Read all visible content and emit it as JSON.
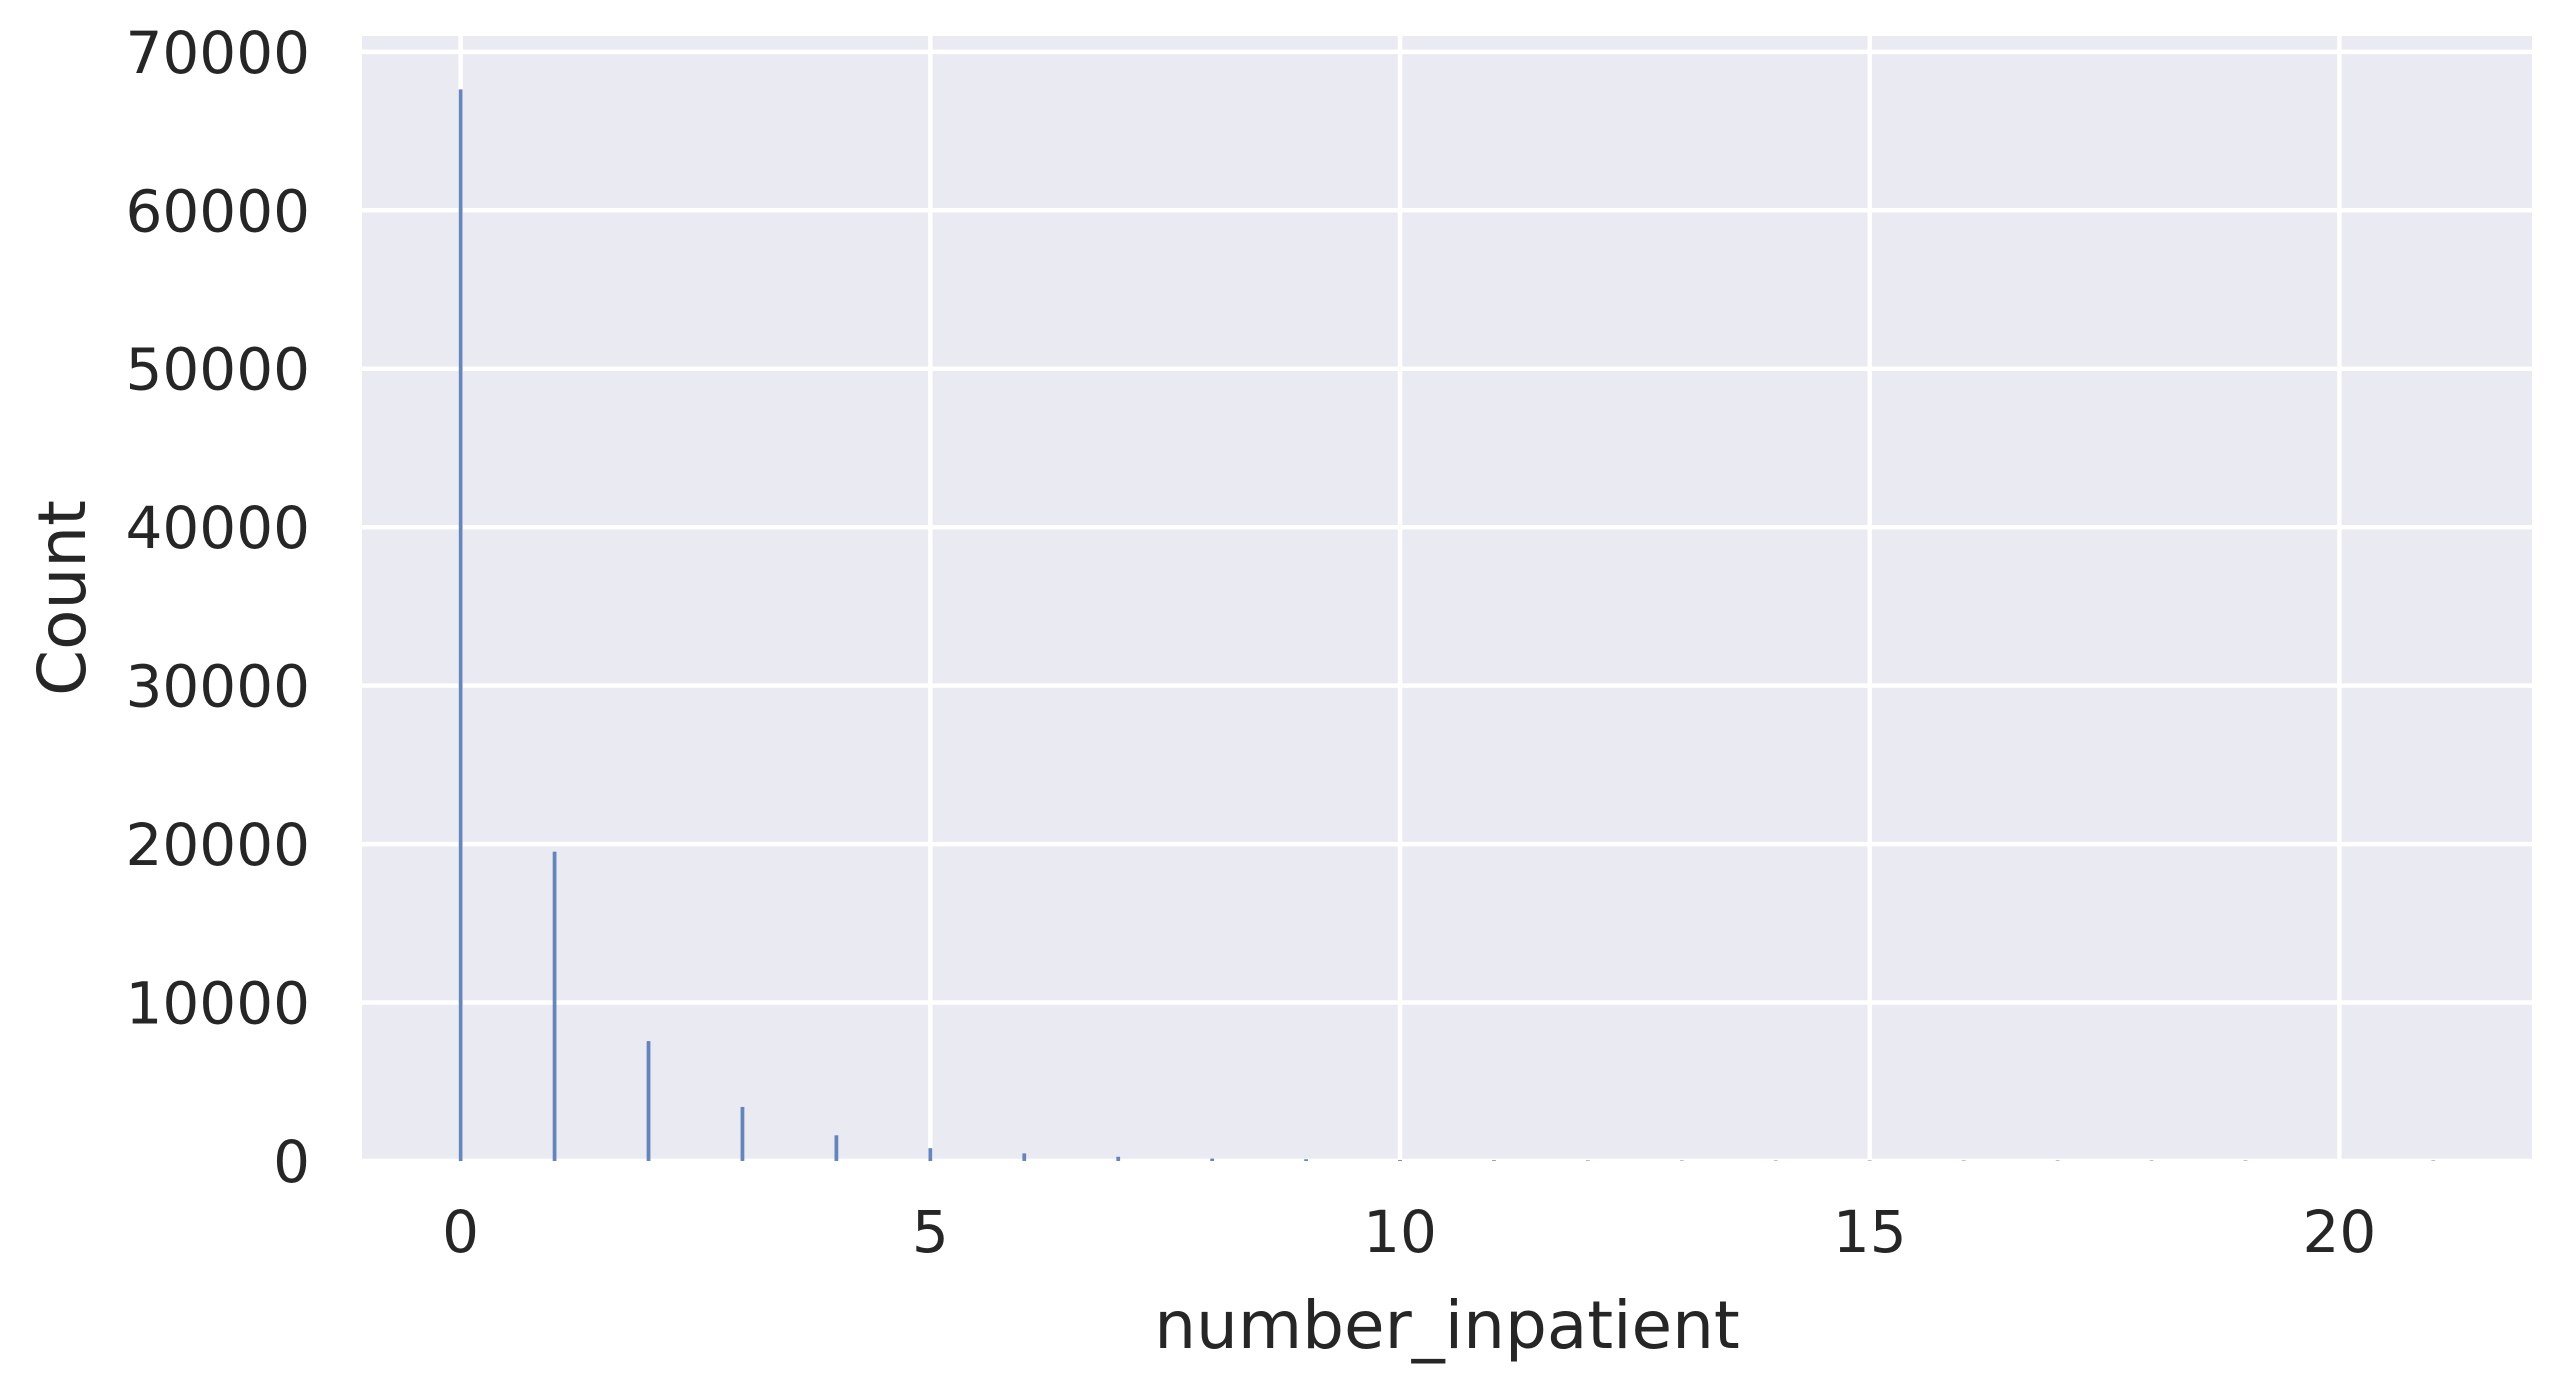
{
  "chart_data": {
    "type": "bar",
    "xlabel": "number_inpatient",
    "ylabel": "Count",
    "xlim": [
      -1.05,
      22.05
    ],
    "ylim": [
      0,
      71000
    ],
    "xticks": [
      0,
      5,
      10,
      15,
      20
    ],
    "yticks": [
      0,
      10000,
      20000,
      30000,
      40000,
      50000,
      60000,
      70000
    ],
    "grid": true,
    "background_color": "#eaeaf2",
    "grid_color": "#ffffff",
    "bar_color": "#4c72b0",
    "x": [
      0,
      1,
      2,
      3,
      4,
      5,
      6,
      7,
      8,
      9,
      10,
      11,
      12,
      13,
      14,
      15,
      16,
      17,
      18,
      19,
      21
    ],
    "values": [
      67630,
      19521,
      7566,
      3411,
      1622,
      812,
      480,
      268,
      151,
      111,
      61,
      49,
      34,
      20,
      10,
      9,
      6,
      1,
      1,
      1,
      1
    ]
  }
}
